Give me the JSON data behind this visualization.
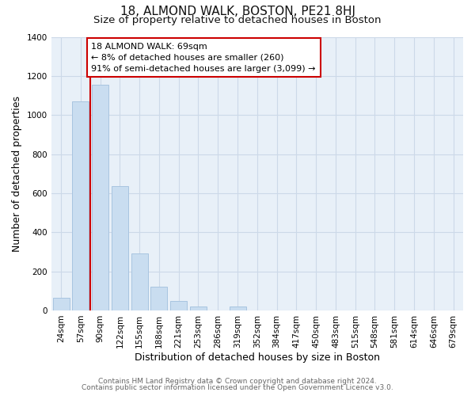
{
  "title": "18, ALMOND WALK, BOSTON, PE21 8HJ",
  "subtitle": "Size of property relative to detached houses in Boston",
  "xlabel": "Distribution of detached houses by size in Boston",
  "ylabel": "Number of detached properties",
  "bar_labels": [
    "24sqm",
    "57sqm",
    "90sqm",
    "122sqm",
    "155sqm",
    "188sqm",
    "221sqm",
    "253sqm",
    "286sqm",
    "319sqm",
    "352sqm",
    "384sqm",
    "417sqm",
    "450sqm",
    "483sqm",
    "515sqm",
    "548sqm",
    "581sqm",
    "614sqm",
    "646sqm",
    "679sqm"
  ],
  "bar_values": [
    65,
    1070,
    1155,
    635,
    290,
    120,
    47,
    22,
    0,
    22,
    0,
    0,
    0,
    0,
    0,
    0,
    0,
    0,
    0,
    0,
    0
  ],
  "bar_color": "#c9ddf0",
  "bar_edge_color": "#a8c4e0",
  "vline_x": 1.5,
  "vline_color": "#cc0000",
  "annotation_text": "18 ALMOND WALK: 69sqm\n← 8% of detached houses are smaller (260)\n91% of semi-detached houses are larger (3,099) →",
  "annotation_box_color": "#ffffff",
  "annotation_box_edge": "#cc0000",
  "ylim": [
    0,
    1400
  ],
  "yticks": [
    0,
    200,
    400,
    600,
    800,
    1000,
    1200,
    1400
  ],
  "footer_line1": "Contains HM Land Registry data © Crown copyright and database right 2024.",
  "footer_line2": "Contains public sector information licensed under the Open Government Licence v3.0.",
  "title_fontsize": 11,
  "subtitle_fontsize": 9.5,
  "axis_label_fontsize": 9,
  "tick_fontsize": 7.5,
  "grid_color": "#ccd9e8",
  "background_color": "#e8f0f8"
}
